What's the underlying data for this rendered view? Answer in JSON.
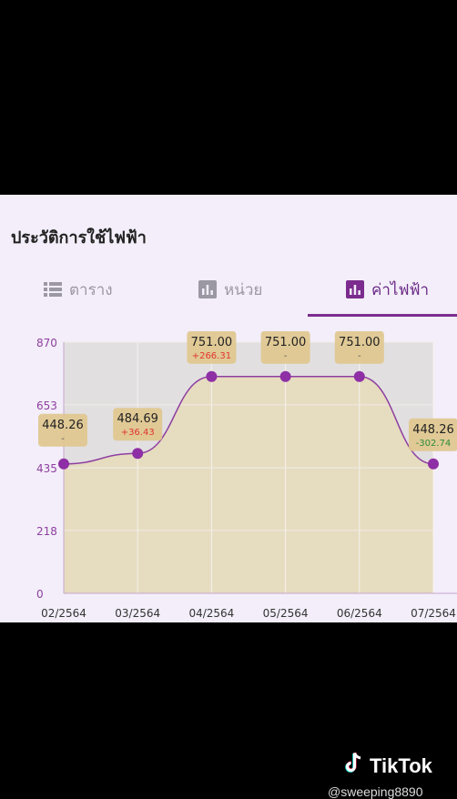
{
  "page": {
    "title": "ประวัติการใช้ไฟฟ้า"
  },
  "tabs": [
    {
      "label": "ตาราง",
      "icon": "table-list-icon",
      "active": false
    },
    {
      "label": "หน่วย",
      "icon": "bar-chart-icon",
      "active": false
    },
    {
      "label": "ค่าไฟฟ้า",
      "icon": "bar-chart-icon",
      "active": true
    }
  ],
  "colors": {
    "accent": "#7b2c8e",
    "point": "#8e2fa5",
    "fill": "#e6dcc0",
    "label_box": "#dfc78e",
    "up": "#e0342f",
    "down": "#2e8b3c"
  },
  "chart_data": {
    "type": "area",
    "categories": [
      "02/2564",
      "03/2564",
      "04/2564",
      "05/2564",
      "06/2564",
      "07/2564"
    ],
    "values": [
      448.26,
      484.69,
      751.0,
      751.0,
      751.0,
      448.26
    ],
    "point_labels": [
      "448.26",
      "484.69",
      "751.00",
      "751.00",
      "751.00",
      "448.26"
    ],
    "change_labels": [
      "-",
      "+36.43",
      "+266.31",
      "-",
      "-",
      "-302.74"
    ],
    "yticks": [
      "870",
      "653",
      "435",
      "218",
      "0"
    ],
    "ylim": [
      0,
      870
    ],
    "grid": true
  },
  "watermark": {
    "brand": "TikTok",
    "handle": "@sweeping8890"
  }
}
